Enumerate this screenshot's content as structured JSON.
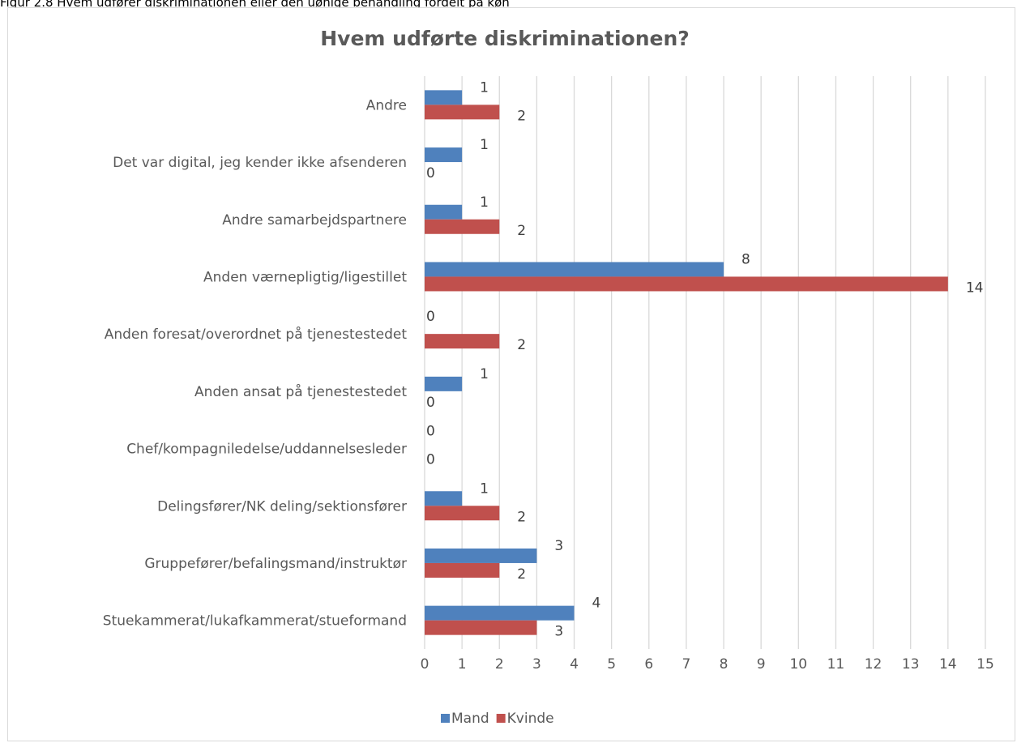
{
  "caption": "Figur 2.8 Hvem udfører diskriminationen eller den uønige behandling fordelt på køn",
  "chart_data": {
    "type": "bar",
    "orientation": "horizontal",
    "title": "Hvem udførte diskriminationen?",
    "categories": [
      "Andre",
      "Det var digital, jeg kender ikke afsenderen",
      "Andre samarbejdspartnere",
      "Anden værnepligtig/ligestillet",
      "Anden foresat/overordnet på tjenestestedet",
      "Anden ansat på tjenestestedet",
      "Chef/kompagniledelse/uddannelsesleder",
      "Delingsfører/NK deling/sektionsfører",
      "Gruppefører/befalingsmand/instruktør",
      "Stuekammerat/lukafkammerat/stueformand"
    ],
    "series": [
      {
        "name": "Mand",
        "color": "#4f81bd",
        "values": [
          1,
          1,
          1,
          8,
          0,
          1,
          0,
          1,
          3,
          4
        ]
      },
      {
        "name": "Kvinde",
        "color": "#c0504d",
        "values": [
          2,
          0,
          2,
          14,
          2,
          0,
          0,
          2,
          2,
          3
        ]
      }
    ],
    "xlim": [
      0,
      15
    ],
    "xticks": [
      0,
      1,
      2,
      3,
      4,
      5,
      6,
      7,
      8,
      9,
      10,
      11,
      12,
      13,
      14,
      15
    ],
    "grid": "vertical",
    "legend": "bottom",
    "data_labels": true
  }
}
